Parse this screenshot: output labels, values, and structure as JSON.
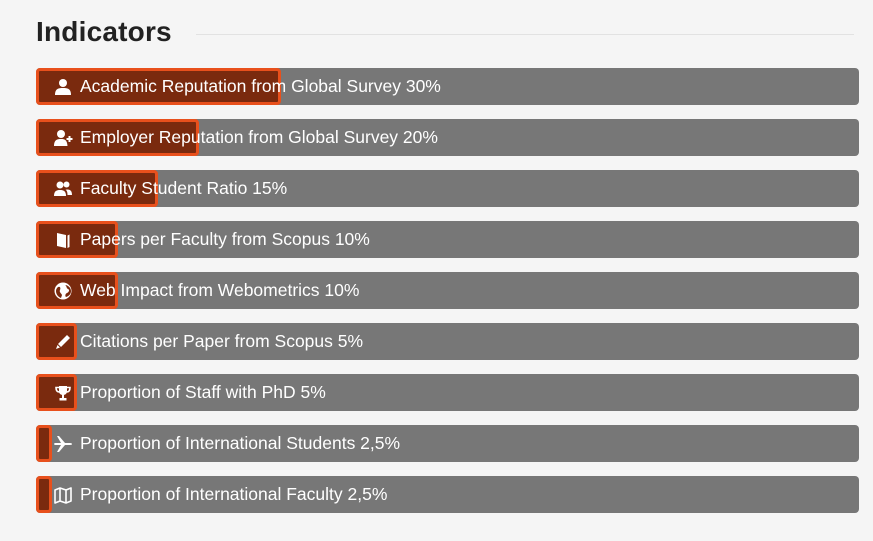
{
  "section": {
    "title": "Indicators"
  },
  "colors": {
    "track": "#777777",
    "fill": "#7a2a0e",
    "fill_border": "#e8501c",
    "text": "#ffffff"
  },
  "indicators": [
    {
      "label": "Academic Reputation from Global Survey 30%",
      "icon": "user-icon",
      "weight_percent": 30
    },
    {
      "label": "Employer Reputation from Global Survey 20%",
      "icon": "user-plus-icon",
      "weight_percent": 20
    },
    {
      "label": "Faculty Student Ratio 15%",
      "icon": "users-icon",
      "weight_percent": 15
    },
    {
      "label": "Papers per Faculty from Scopus 10%",
      "icon": "book-icon",
      "weight_percent": 10
    },
    {
      "label": "Web Impact from Webometrics 10%",
      "icon": "globe-icon",
      "weight_percent": 10
    },
    {
      "label": "Citations per Paper from Scopus 5%",
      "icon": "pencil-icon",
      "weight_percent": 5
    },
    {
      "label": "Proportion of Staff with PhD 5%",
      "icon": "trophy-icon",
      "weight_percent": 5
    },
    {
      "label": "Proportion of International Students 2,5%",
      "icon": "airplane-icon",
      "weight_percent": 2.5
    },
    {
      "label": "Proportion of International Faculty 2,5%",
      "icon": "map-icon",
      "weight_percent": 2.5
    }
  ]
}
